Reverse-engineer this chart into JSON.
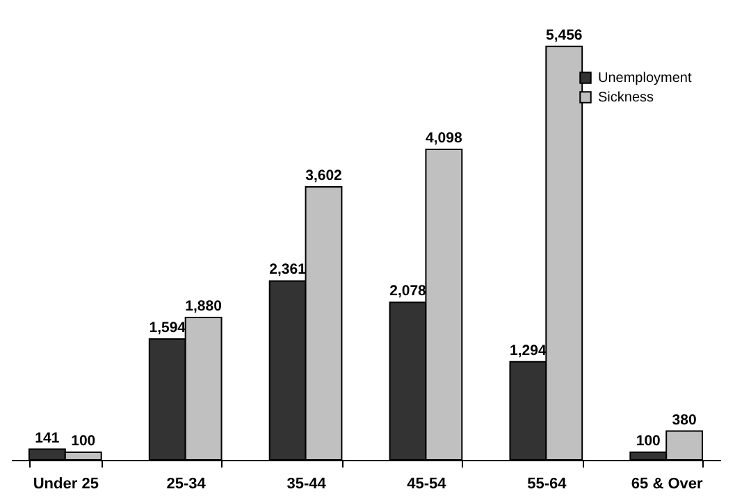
{
  "chart_data": {
    "type": "bar",
    "categories": [
      "Under 25",
      "25-34",
      "35-44",
      "45-54",
      "55-64",
      "65 & Over"
    ],
    "series": [
      {
        "name": "Unemployment",
        "color": "#333333",
        "values": [
          141,
          1594,
          2361,
          2078,
          1294,
          100
        ],
        "value_labels": [
          "141",
          "1,594",
          "2,361",
          "2,078",
          "1,294",
          "100"
        ]
      },
      {
        "name": "Sickness",
        "color": "#c0c0c0",
        "values": [
          100,
          1880,
          3602,
          4098,
          5456,
          380
        ],
        "value_labels": [
          "100",
          "1,880",
          "3,602",
          "4,098",
          "5,456",
          "380"
        ]
      }
    ],
    "legend": "top right",
    "tick_labels": "x"
  }
}
